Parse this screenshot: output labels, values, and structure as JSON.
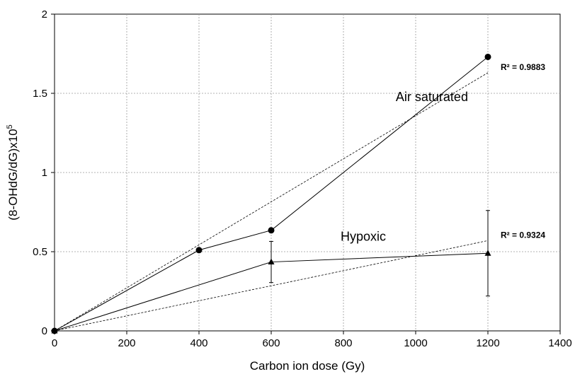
{
  "chart_data": {
    "type": "line",
    "xlabel": "Carbon ion dose (Gy)",
    "ylabel_main": "(8-OHdG/dG)x10",
    "ylabel_sup": "5",
    "xlim": [
      0,
      1400
    ],
    "ylim": [
      0,
      2
    ],
    "xticks": [
      0,
      200,
      400,
      600,
      800,
      1000,
      1200,
      1400
    ],
    "yticks": [
      0,
      0.5,
      1,
      1.5,
      2
    ],
    "xtick_labels": [
      "0",
      "200",
      "400",
      "600",
      "800",
      "1000",
      "1200",
      "1400"
    ],
    "ytick_labels": [
      "0",
      "0.5",
      "1",
      "1.5",
      "2"
    ],
    "grid": true,
    "series": [
      {
        "name": "Air saturated",
        "marker": "circle",
        "points": [
          [
            0,
            0
          ],
          [
            400,
            0.51
          ],
          [
            600,
            0.635
          ],
          [
            1200,
            1.73
          ]
        ],
        "trendline": {
          "x": [
            0,
            1200
          ],
          "y": [
            0,
            1.63
          ]
        },
        "r2_label": "R² = 0.9883",
        "r2_anchor": [
          1200,
          1.63
        ]
      },
      {
        "name": "Hypoxic",
        "marker": "triangle",
        "points": [
          [
            0,
            0
          ],
          [
            600,
            0.435
          ],
          [
            1200,
            0.49
          ]
        ],
        "errors": [
          0,
          0.13,
          0.27
        ],
        "trendline": {
          "x": [
            0,
            1200
          ],
          "y": [
            0,
            0.57
          ]
        },
        "r2_label": "R² = 0.9324",
        "r2_anchor": [
          1200,
          0.57
        ]
      }
    ],
    "annotations": [
      {
        "text": "Air saturated",
        "x": 1045,
        "y": 1.45
      },
      {
        "text": "Hypoxic",
        "x": 855,
        "y": 0.57
      }
    ]
  }
}
